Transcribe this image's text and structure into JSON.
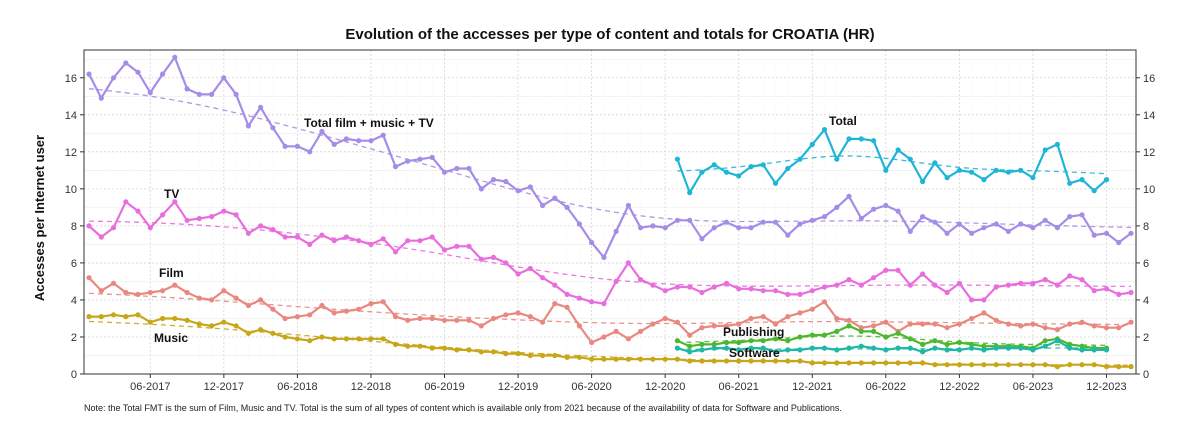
{
  "chart_data": {
    "type": "line",
    "title": "Evolution of the accesses per type of content and totals for CROATIA (HR)",
    "ylabel": "Accesses per Internet user",
    "xlabel": "",
    "note": "Note: the Total FMT is the sum of Film, Music and TV. Total is the sum of all types of content which is available only from 2021 because of the availability of data for Software and Publications.",
    "ylim": [
      0,
      17.5
    ],
    "yticks": [
      0,
      2,
      4,
      6,
      8,
      10,
      12,
      14,
      16
    ],
    "x_start": "2017-01",
    "x_tick_labels": [
      "06-2017",
      "12-2017",
      "06-2018",
      "12-2018",
      "06-2019",
      "12-2019",
      "06-2020",
      "12-2020",
      "06-2021",
      "12-2021",
      "06-2022",
      "12-2022",
      "06-2023",
      "12-2023"
    ],
    "x_tick_months": [
      "2017-06",
      "2017-12",
      "2018-06",
      "2018-12",
      "2019-06",
      "2019-12",
      "2020-06",
      "2020-12",
      "2021-06",
      "2021-12",
      "2022-06",
      "2022-12",
      "2023-06",
      "2023-12"
    ],
    "annotations": {
      "total_fmt": "Total film + music + TV",
      "total": "Total",
      "tv": "TV",
      "film": "Film",
      "music": "Music",
      "publishing": "Publishing",
      "software": "Software"
    },
    "colors": {
      "total_fmt": "#a48de6",
      "total": "#1fb5d6",
      "tv": "#e86ddd",
      "film": "#e88880",
      "music": "#c7a617",
      "publishing": "#4cb82e",
      "software": "#1db8a6"
    },
    "series": [
      {
        "key": "total_fmt",
        "start": "2017-01",
        "values": [
          16.2,
          14.9,
          16.0,
          16.8,
          16.3,
          15.2,
          16.2,
          17.1,
          15.4,
          15.1,
          15.1,
          16.0,
          15.1,
          13.4,
          14.4,
          13.3,
          12.3,
          12.3,
          12.0,
          13.1,
          12.4,
          12.7,
          12.6,
          12.6,
          12.9,
          11.2,
          11.5,
          11.6,
          11.7,
          10.9,
          11.1,
          11.1,
          10.0,
          10.5,
          10.4,
          9.9,
          10.1,
          9.1,
          9.5,
          9.0,
          8.1,
          7.1,
          6.3,
          7.7,
          9.1,
          7.9,
          8.0,
          7.9,
          8.3,
          8.3,
          7.3,
          7.9,
          8.2,
          7.9,
          7.9,
          8.2,
          8.2,
          7.5,
          8.1,
          8.3,
          8.5,
          9.0,
          9.6,
          8.4,
          8.9,
          9.1,
          8.8,
          7.7,
          8.5,
          8.2,
          7.6,
          8.1,
          7.6,
          7.9,
          8.1,
          7.7,
          8.1,
          7.9,
          8.3,
          7.9,
          8.5,
          8.6,
          7.5,
          7.6,
          7.1,
          7.6
        ]
      },
      {
        "key": "tv",
        "start": "2017-01",
        "values": [
          8.0,
          7.4,
          7.9,
          9.3,
          8.8,
          7.9,
          8.6,
          9.3,
          8.3,
          8.4,
          8.5,
          8.8,
          8.6,
          7.6,
          8.0,
          7.8,
          7.4,
          7.4,
          7.0,
          7.5,
          7.2,
          7.4,
          7.2,
          7.0,
          7.3,
          6.6,
          7.2,
          7.2,
          7.4,
          6.7,
          6.9,
          6.9,
          6.2,
          6.3,
          6.0,
          5.4,
          5.7,
          5.2,
          4.8,
          4.3,
          4.1,
          3.9,
          3.8,
          5.0,
          6.0,
          5.1,
          4.8,
          4.5,
          4.7,
          4.7,
          4.4,
          4.7,
          4.9,
          4.6,
          4.6,
          4.5,
          4.5,
          4.3,
          4.3,
          4.5,
          4.7,
          4.8,
          5.1,
          4.8,
          5.2,
          5.6,
          5.6,
          4.8,
          5.4,
          4.8,
          4.4,
          4.9,
          4.0,
          4.0,
          4.7,
          4.8,
          4.9,
          4.9,
          5.1,
          4.8,
          5.3,
          5.1,
          4.5,
          4.6,
          4.3,
          4.4
        ]
      },
      {
        "key": "film",
        "start": "2017-01",
        "values": [
          5.2,
          4.5,
          4.9,
          4.4,
          4.3,
          4.4,
          4.5,
          4.8,
          4.4,
          4.1,
          4.0,
          4.5,
          4.1,
          3.7,
          4.0,
          3.5,
          3.0,
          3.1,
          3.2,
          3.7,
          3.3,
          3.4,
          3.5,
          3.8,
          3.9,
          3.1,
          2.9,
          3.0,
          3.0,
          2.9,
          2.9,
          2.9,
          2.6,
          3.0,
          3.2,
          3.3,
          3.1,
          2.8,
          3.8,
          3.6,
          2.6,
          1.7,
          2.0,
          2.3,
          1.9,
          2.3,
          2.7,
          3.0,
          2.8,
          2.1,
          2.5,
          2.6,
          2.6,
          2.7,
          3.0,
          3.1,
          2.7,
          3.1,
          3.3,
          3.5,
          3.9,
          3.0,
          2.9,
          2.5,
          2.6,
          2.8,
          2.3,
          2.7,
          2.7,
          2.7,
          2.5,
          2.7,
          3.0,
          3.3,
          2.9,
          2.7,
          2.6,
          2.7,
          2.5,
          2.4,
          2.7,
          2.8,
          2.6,
          2.5,
          2.5,
          2.8
        ]
      },
      {
        "key": "music",
        "start": "2017-01",
        "values": [
          3.1,
          3.1,
          3.2,
          3.1,
          3.2,
          2.8,
          3.0,
          3.0,
          2.9,
          2.7,
          2.6,
          2.8,
          2.6,
          2.2,
          2.4,
          2.2,
          2.0,
          1.9,
          1.8,
          2.0,
          1.9,
          1.9,
          1.9,
          1.9,
          1.9,
          1.6,
          1.5,
          1.5,
          1.4,
          1.4,
          1.3,
          1.3,
          1.2,
          1.2,
          1.1,
          1.1,
          1.0,
          1.0,
          1.0,
          0.9,
          0.9,
          0.8,
          0.8,
          0.8,
          0.8,
          0.8,
          0.8,
          0.8,
          0.8,
          0.7,
          0.7,
          0.7,
          0.7,
          0.7,
          0.7,
          0.7,
          0.7,
          0.7,
          0.7,
          0.6,
          0.6,
          0.6,
          0.6,
          0.6,
          0.6,
          0.6,
          0.6,
          0.6,
          0.6,
          0.5,
          0.5,
          0.5,
          0.5,
          0.5,
          0.5,
          0.5,
          0.5,
          0.5,
          0.5,
          0.4,
          0.5,
          0.5,
          0.5,
          0.4,
          0.4,
          0.4
        ]
      },
      {
        "key": "total",
        "start": "2021-01",
        "values": [
          11.6,
          9.8,
          10.9,
          11.3,
          10.9,
          10.7,
          11.2,
          11.3,
          10.3,
          11.1,
          11.6,
          12.4,
          13.2,
          11.6,
          12.7,
          12.7,
          12.6,
          11.0,
          12.1,
          11.6,
          10.4,
          11.4,
          10.6,
          11.0,
          10.9,
          10.5,
          11.0,
          10.9,
          11.0,
          10.6,
          12.1,
          12.4,
          10.3,
          10.5,
          9.9,
          10.5
        ]
      },
      {
        "key": "publishing",
        "start": "2021-01",
        "values": [
          1.8,
          1.5,
          1.6,
          1.6,
          1.7,
          1.7,
          1.8,
          1.8,
          1.9,
          1.8,
          2.0,
          2.1,
          2.1,
          2.3,
          2.6,
          2.3,
          2.3,
          2.0,
          2.2,
          1.9,
          1.6,
          1.8,
          1.6,
          1.7,
          1.6,
          1.5,
          1.5,
          1.5,
          1.5,
          1.4,
          1.8,
          1.9,
          1.6,
          1.5,
          1.4,
          1.4
        ]
      },
      {
        "key": "software",
        "start": "2021-01",
        "values": [
          1.4,
          1.2,
          1.3,
          1.4,
          1.4,
          1.3,
          1.4,
          1.4,
          1.2,
          1.3,
          1.3,
          1.4,
          1.4,
          1.3,
          1.4,
          1.5,
          1.4,
          1.3,
          1.4,
          1.4,
          1.2,
          1.4,
          1.3,
          1.3,
          1.4,
          1.3,
          1.4,
          1.4,
          1.4,
          1.3,
          1.5,
          1.8,
          1.4,
          1.3,
          1.3,
          1.3
        ]
      }
    ]
  }
}
